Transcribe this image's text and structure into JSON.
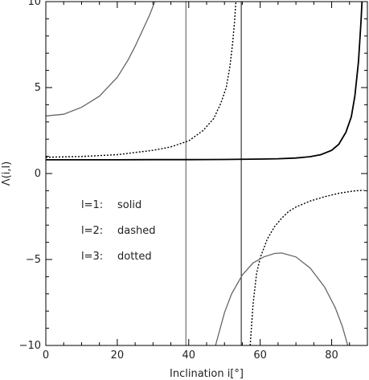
{
  "chart_data": {
    "type": "line",
    "title": "",
    "xlabel": "Inclination i[°]",
    "ylabel": "Λ(i,l)",
    "xlim": [
      0,
      90
    ],
    "ylim": [
      -10,
      10
    ],
    "x_ticks": [
      0,
      20,
      40,
      60,
      80
    ],
    "y_ticks": [
      -10,
      -5,
      0,
      5,
      10
    ],
    "x_tick_labels": [
      "0",
      "20",
      "40",
      "60",
      "80"
    ],
    "y_tick_labels": [
      "−10",
      "−5",
      "0",
      "5",
      "10"
    ],
    "grid": false,
    "legend": {
      "placement": "left-middle",
      "entries": [
        {
          "label": "l=1:",
          "style": "solid"
        },
        {
          "label": "l=2:",
          "style": "dashed"
        },
        {
          "label": "l=3:",
          "style": "dotted"
        }
      ]
    },
    "vertical_lines": [
      {
        "x": 39.2,
        "color": "#555555"
      },
      {
        "x": 54.7,
        "color": "#111111"
      },
      {
        "x": 90.0,
        "color": "#111111"
      }
    ],
    "series": [
      {
        "style": "solid",
        "color": "#000000",
        "points": [
          [
            0,
            0.8
          ],
          [
            10,
            0.8
          ],
          [
            20,
            0.8
          ],
          [
            30,
            0.81
          ],
          [
            40,
            0.81
          ],
          [
            50,
            0.82
          ],
          [
            60,
            0.84
          ],
          [
            65,
            0.86
          ],
          [
            70,
            0.9
          ],
          [
            74,
            0.98
          ],
          [
            77,
            1.1
          ],
          [
            80,
            1.35
          ],
          [
            82,
            1.7
          ],
          [
            84,
            2.4
          ],
          [
            85.5,
            3.3
          ],
          [
            86.5,
            4.5
          ],
          [
            87.5,
            6.5
          ],
          [
            88.2,
            8.8
          ],
          [
            88.5,
            10.0
          ]
        ]
      },
      {
        "style": "dotted",
        "color": "#000000",
        "points": [
          [
            0,
            0.95
          ],
          [
            10,
            0.99
          ],
          [
            20,
            1.1
          ],
          [
            30,
            1.35
          ],
          [
            35,
            1.55
          ],
          [
            40,
            1.9
          ],
          [
            44,
            2.5
          ],
          [
            47,
            3.2
          ],
          [
            49,
            4.1
          ],
          [
            50.5,
            5.0
          ],
          [
            51.5,
            6.2
          ],
          [
            52.3,
            7.6
          ],
          [
            52.8,
            8.8
          ],
          [
            53.2,
            10.0
          ]
        ]
      },
      {
        "style": "dotted",
        "color": "#000000",
        "points": [
          [
            57.2,
            -10.0
          ],
          [
            58,
            -7.6
          ],
          [
            59,
            -5.8
          ],
          [
            60,
            -4.9
          ],
          [
            62,
            -3.8
          ],
          [
            64,
            -3.1
          ],
          [
            66,
            -2.6
          ],
          [
            68,
            -2.2
          ],
          [
            70,
            -1.95
          ],
          [
            74,
            -1.6
          ],
          [
            78,
            -1.35
          ],
          [
            82,
            -1.15
          ],
          [
            86,
            -1.02
          ],
          [
            89,
            -0.97
          ]
        ]
      },
      {
        "style": "solid",
        "color": "#666666",
        "points": [
          [
            0,
            3.35
          ],
          [
            5,
            3.45
          ],
          [
            10,
            3.85
          ],
          [
            15,
            4.5
          ],
          [
            20,
            5.6
          ],
          [
            23,
            6.6
          ],
          [
            25,
            7.4
          ],
          [
            27,
            8.3
          ],
          [
            29,
            9.2
          ],
          [
            30.5,
            10.0
          ]
        ]
      },
      {
        "style": "solid",
        "color": "#666666",
        "points": [
          [
            47.5,
            -10.0
          ],
          [
            50,
            -8.1
          ],
          [
            52,
            -7.0
          ],
          [
            55,
            -5.9
          ],
          [
            58,
            -5.2
          ],
          [
            61,
            -4.85
          ],
          [
            64,
            -4.65
          ],
          [
            66,
            -4.62
          ],
          [
            70,
            -4.85
          ],
          [
            74,
            -5.5
          ],
          [
            78,
            -6.6
          ],
          [
            81,
            -7.8
          ],
          [
            83,
            -8.9
          ],
          [
            84.5,
            -10.0
          ]
        ]
      }
    ]
  }
}
